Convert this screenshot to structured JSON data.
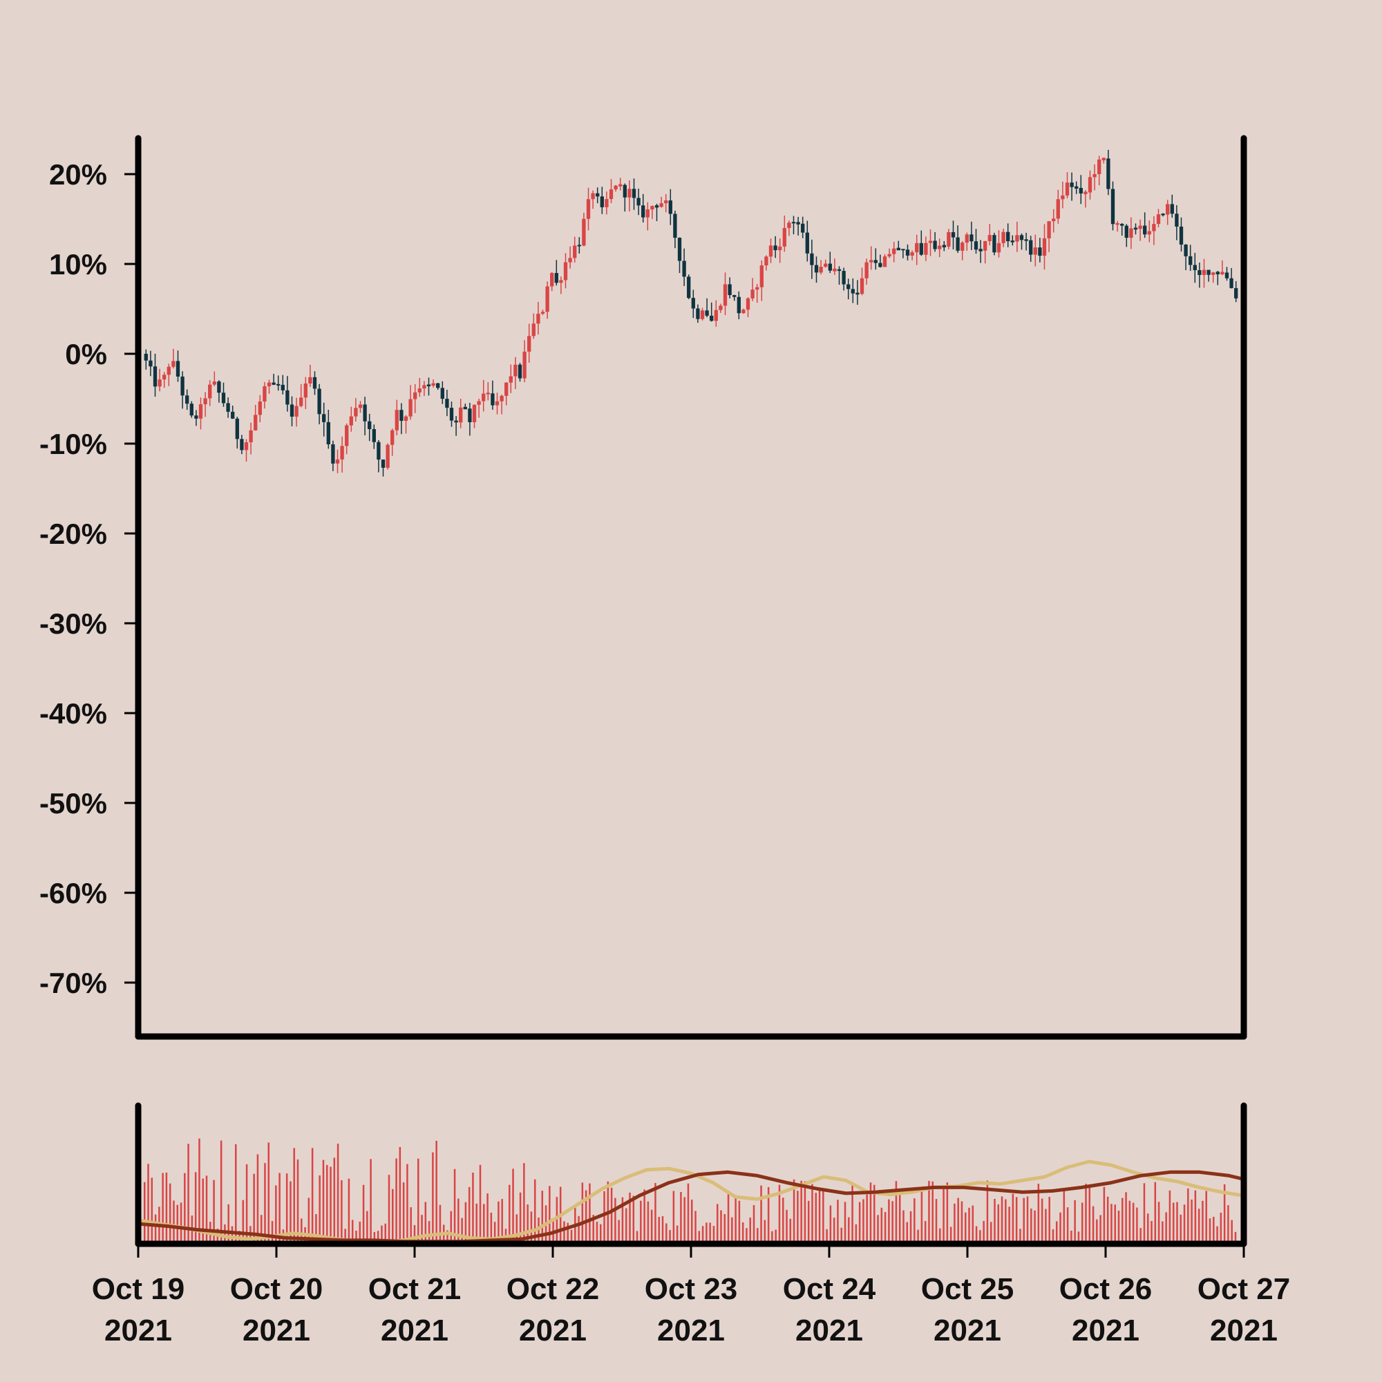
{
  "chart_data": {
    "type": "candlestick",
    "title": "",
    "xlabel": "",
    "ylabel": "",
    "x_range": [
      "Oct 19 2021",
      "Oct 27 2021"
    ],
    "x_ticks": [
      {
        "line1": "Oct 19",
        "line2": "2021"
      },
      {
        "line1": "Oct 20",
        "line2": "2021"
      },
      {
        "line1": "Oct 21",
        "line2": "2021"
      },
      {
        "line1": "Oct 22",
        "line2": "2021"
      },
      {
        "line1": "Oct 23",
        "line2": "2021"
      },
      {
        "line1": "Oct 24",
        "line2": "2021"
      },
      {
        "line1": "Oct 25",
        "line2": "2021"
      },
      {
        "line1": "Oct 26",
        "line2": "2021"
      },
      {
        "line1": "Oct 27",
        "line2": "2021"
      }
    ],
    "y_ticks": [
      "20%",
      "10%",
      "0%",
      "-10%",
      "-20%",
      "-30%",
      "-40%",
      "-50%",
      "-60%",
      "-70%"
    ],
    "y_tick_values": [
      20,
      10,
      0,
      -10,
      -20,
      -30,
      -40,
      -50,
      -60,
      -70
    ],
    "ylim": [
      -76,
      24
    ],
    "grid": false,
    "candle_up_color": "#d94545",
    "candle_down_color": "#0f3440",
    "close_path_pct": [
      [
        0.0,
        0.0
      ],
      [
        0.1,
        -1.5
      ],
      [
        0.2,
        -3.5
      ],
      [
        0.3,
        -3.0
      ],
      [
        0.4,
        -0.5
      ],
      [
        0.5,
        -2.5
      ],
      [
        0.6,
        -5.5
      ],
      [
        0.7,
        -7.5
      ],
      [
        0.8,
        -6.5
      ],
      [
        0.9,
        -4.0
      ],
      [
        1.0,
        -3.5
      ],
      [
        1.1,
        -5.0
      ],
      [
        1.2,
        -6.5
      ],
      [
        1.3,
        -9.0
      ],
      [
        1.4,
        -10.5
      ],
      [
        1.5,
        -8.5
      ],
      [
        1.6,
        -6.0
      ],
      [
        1.7,
        -3.5
      ],
      [
        1.8,
        -4.0
      ],
      [
        1.9,
        -3.5
      ],
      [
        2.0,
        -6.0
      ],
      [
        2.1,
        -7.0
      ],
      [
        2.2,
        -4.0
      ],
      [
        2.3,
        -2.0
      ],
      [
        2.4,
        -5.0
      ],
      [
        2.5,
        -8.0
      ],
      [
        2.6,
        -11.5
      ],
      [
        2.7,
        -12.0
      ],
      [
        2.8,
        -8.5
      ],
      [
        2.9,
        -6.0
      ],
      [
        3.0,
        -5.5
      ],
      [
        3.1,
        -8.0
      ],
      [
        3.2,
        -10.5
      ],
      [
        3.3,
        -13.0
      ],
      [
        3.4,
        -9.0
      ],
      [
        3.5,
        -6.5
      ],
      [
        3.6,
        -7.5
      ],
      [
        3.7,
        -4.5
      ],
      [
        3.8,
        -3.5
      ],
      [
        3.9,
        -4.0
      ],
      [
        4.0,
        -3.5
      ],
      [
        4.1,
        -4.5
      ],
      [
        4.2,
        -6.5
      ],
      [
        4.3,
        -8.0
      ],
      [
        4.4,
        -6.0
      ],
      [
        4.5,
        -7.5
      ],
      [
        4.6,
        -5.5
      ],
      [
        4.7,
        -4.0
      ],
      [
        4.8,
        -6.0
      ],
      [
        4.9,
        -5.5
      ],
      [
        5.0,
        -3.5
      ],
      [
        5.1,
        -1.5
      ],
      [
        5.2,
        -2.5
      ],
      [
        5.3,
        2.0
      ],
      [
        5.4,
        3.5
      ],
      [
        5.5,
        5.0
      ],
      [
        5.6,
        9.5
      ],
      [
        5.7,
        7.5
      ],
      [
        5.8,
        10.0
      ],
      [
        5.9,
        11.5
      ],
      [
        6.0,
        12.5
      ],
      [
        6.1,
        16.0
      ],
      [
        6.2,
        18.5
      ],
      [
        6.3,
        15.5
      ],
      [
        6.4,
        17.5
      ],
      [
        6.5,
        19.0
      ],
      [
        6.6,
        18.0
      ],
      [
        6.7,
        18.0
      ],
      [
        6.8,
        16.0
      ],
      [
        6.9,
        15.5
      ],
      [
        7.0,
        16.5
      ],
      [
        7.1,
        17.0
      ],
      [
        7.2,
        16.5
      ],
      [
        7.3,
        13.5
      ],
      [
        7.4,
        10.0
      ],
      [
        7.5,
        6.5
      ],
      [
        7.6,
        4.0
      ],
      [
        7.7,
        5.5
      ],
      [
        7.8,
        3.5
      ],
      [
        7.9,
        5.0
      ],
      [
        8.0,
        7.5
      ],
      [
        8.1,
        6.5
      ],
      [
        8.2,
        4.5
      ],
      [
        8.3,
        5.5
      ],
      [
        8.4,
        7.0
      ],
      [
        8.5,
        9.5
      ],
      [
        8.6,
        12.0
      ],
      [
        8.7,
        11.5
      ],
      [
        8.8,
        13.5
      ],
      [
        8.9,
        15.0
      ],
      [
        9.0,
        14.5
      ],
      [
        9.1,
        12.0
      ],
      [
        9.2,
        9.0
      ],
      [
        9.3,
        10.0
      ],
      [
        9.4,
        9.5
      ],
      [
        9.5,
        10.0
      ],
      [
        9.6,
        8.0
      ],
      [
        9.7,
        7.5
      ],
      [
        9.8,
        6.0
      ],
      [
        9.9,
        9.5
      ],
      [
        10.0,
        11.0
      ],
      [
        10.1,
        9.0
      ],
      [
        10.2,
        10.5
      ],
      [
        10.3,
        12.0
      ],
      [
        10.4,
        11.0
      ],
      [
        10.5,
        11.5
      ],
      [
        10.6,
        12.0
      ],
      [
        10.7,
        11.0
      ],
      [
        10.8,
        13.0
      ],
      [
        10.9,
        11.5
      ],
      [
        11.0,
        12.5
      ],
      [
        11.1,
        13.5
      ],
      [
        11.2,
        11.0
      ],
      [
        11.3,
        13.0
      ],
      [
        11.4,
        12.5
      ],
      [
        11.5,
        11.0
      ],
      [
        11.6,
        13.0
      ],
      [
        11.7,
        11.5
      ],
      [
        11.8,
        13.5
      ],
      [
        11.9,
        12.0
      ],
      [
        12.0,
        13.5
      ],
      [
        12.1,
        12.5
      ],
      [
        12.2,
        11.5
      ],
      [
        12.3,
        11.0
      ],
      [
        12.4,
        13.5
      ],
      [
        12.5,
        15.5
      ],
      [
        12.6,
        17.5
      ],
      [
        12.7,
        19.0
      ],
      [
        12.8,
        18.5
      ],
      [
        12.9,
        17.0
      ],
      [
        13.0,
        19.5
      ],
      [
        13.1,
        21.0
      ],
      [
        13.2,
        21.5
      ],
      [
        13.3,
        15.0
      ],
      [
        13.4,
        14.5
      ],
      [
        13.5,
        12.5
      ],
      [
        13.6,
        14.0
      ],
      [
        13.7,
        14.5
      ],
      [
        13.8,
        13.0
      ],
      [
        13.9,
        14.5
      ],
      [
        14.0,
        16.0
      ],
      [
        14.1,
        16.5
      ],
      [
        14.2,
        13.5
      ],
      [
        14.3,
        11.5
      ],
      [
        14.4,
        9.0
      ],
      [
        14.5,
        8.5
      ],
      [
        14.6,
        9.5
      ],
      [
        14.7,
        9.0
      ],
      [
        14.8,
        9.5
      ],
      [
        14.9,
        8.0
      ],
      [
        15.0,
        6.5
      ]
    ],
    "volume_axis": "unlabeled",
    "volume_color": "#d94545",
    "moving_averages": [
      {
        "color": "#d9bd78"
      },
      {
        "color": "#8a3218"
      }
    ],
    "ma_short_path_frac": [
      [
        0.0,
        0.2
      ],
      [
        0.3,
        0.17
      ],
      [
        0.6,
        0.14
      ],
      [
        0.9,
        0.1
      ],
      [
        1.2,
        0.06
      ],
      [
        1.5,
        0.04
      ],
      [
        1.8,
        0.06
      ],
      [
        2.1,
        0.09
      ],
      [
        2.4,
        0.07
      ],
      [
        2.7,
        0.04
      ],
      [
        3.0,
        0.02
      ],
      [
        3.3,
        0.01
      ],
      [
        3.6,
        0.03
      ],
      [
        3.9,
        0.07
      ],
      [
        4.2,
        0.09
      ],
      [
        4.5,
        0.05
      ],
      [
        4.8,
        0.04
      ],
      [
        5.1,
        0.07
      ],
      [
        5.4,
        0.12
      ],
      [
        5.7,
        0.23
      ],
      [
        6.0,
        0.35
      ],
      [
        6.3,
        0.47
      ],
      [
        6.6,
        0.56
      ],
      [
        6.9,
        0.63
      ],
      [
        7.2,
        0.64
      ],
      [
        7.5,
        0.6
      ],
      [
        7.8,
        0.52
      ],
      [
        8.1,
        0.4
      ],
      [
        8.4,
        0.38
      ],
      [
        8.7,
        0.43
      ],
      [
        9.0,
        0.5
      ],
      [
        9.3,
        0.57
      ],
      [
        9.6,
        0.54
      ],
      [
        9.9,
        0.44
      ],
      [
        10.2,
        0.42
      ],
      [
        10.5,
        0.44
      ],
      [
        10.8,
        0.48
      ],
      [
        11.1,
        0.49
      ],
      [
        11.4,
        0.52
      ],
      [
        11.7,
        0.51
      ],
      [
        12.0,
        0.54
      ],
      [
        12.3,
        0.57
      ],
      [
        12.6,
        0.65
      ],
      [
        12.9,
        0.7
      ],
      [
        13.2,
        0.67
      ],
      [
        13.5,
        0.61
      ],
      [
        13.8,
        0.56
      ],
      [
        14.1,
        0.53
      ],
      [
        14.4,
        0.48
      ],
      [
        14.7,
        0.44
      ],
      [
        15.0,
        0.41
      ]
    ],
    "ma_long_path_frac": [
      [
        0.0,
        0.17
      ],
      [
        0.4,
        0.15
      ],
      [
        0.8,
        0.12
      ],
      [
        1.2,
        0.1
      ],
      [
        1.6,
        0.08
      ],
      [
        2.0,
        0.05
      ],
      [
        2.4,
        0.04
      ],
      [
        2.8,
        0.03
      ],
      [
        3.2,
        0.03
      ],
      [
        3.6,
        0.02
      ],
      [
        4.0,
        0.02
      ],
      [
        4.4,
        0.02
      ],
      [
        4.8,
        0.03
      ],
      [
        5.2,
        0.04
      ],
      [
        5.6,
        0.09
      ],
      [
        6.0,
        0.17
      ],
      [
        6.4,
        0.27
      ],
      [
        6.8,
        0.41
      ],
      [
        7.2,
        0.52
      ],
      [
        7.6,
        0.59
      ],
      [
        8.0,
        0.61
      ],
      [
        8.4,
        0.58
      ],
      [
        8.8,
        0.52
      ],
      [
        9.2,
        0.47
      ],
      [
        9.6,
        0.43
      ],
      [
        10.0,
        0.44
      ],
      [
        10.4,
        0.46
      ],
      [
        10.8,
        0.48
      ],
      [
        11.2,
        0.48
      ],
      [
        11.6,
        0.46
      ],
      [
        12.0,
        0.44
      ],
      [
        12.4,
        0.45
      ],
      [
        12.8,
        0.48
      ],
      [
        13.2,
        0.52
      ],
      [
        13.6,
        0.58
      ],
      [
        14.0,
        0.61
      ],
      [
        14.4,
        0.61
      ],
      [
        14.8,
        0.58
      ],
      [
        15.0,
        0.55
      ]
    ]
  }
}
